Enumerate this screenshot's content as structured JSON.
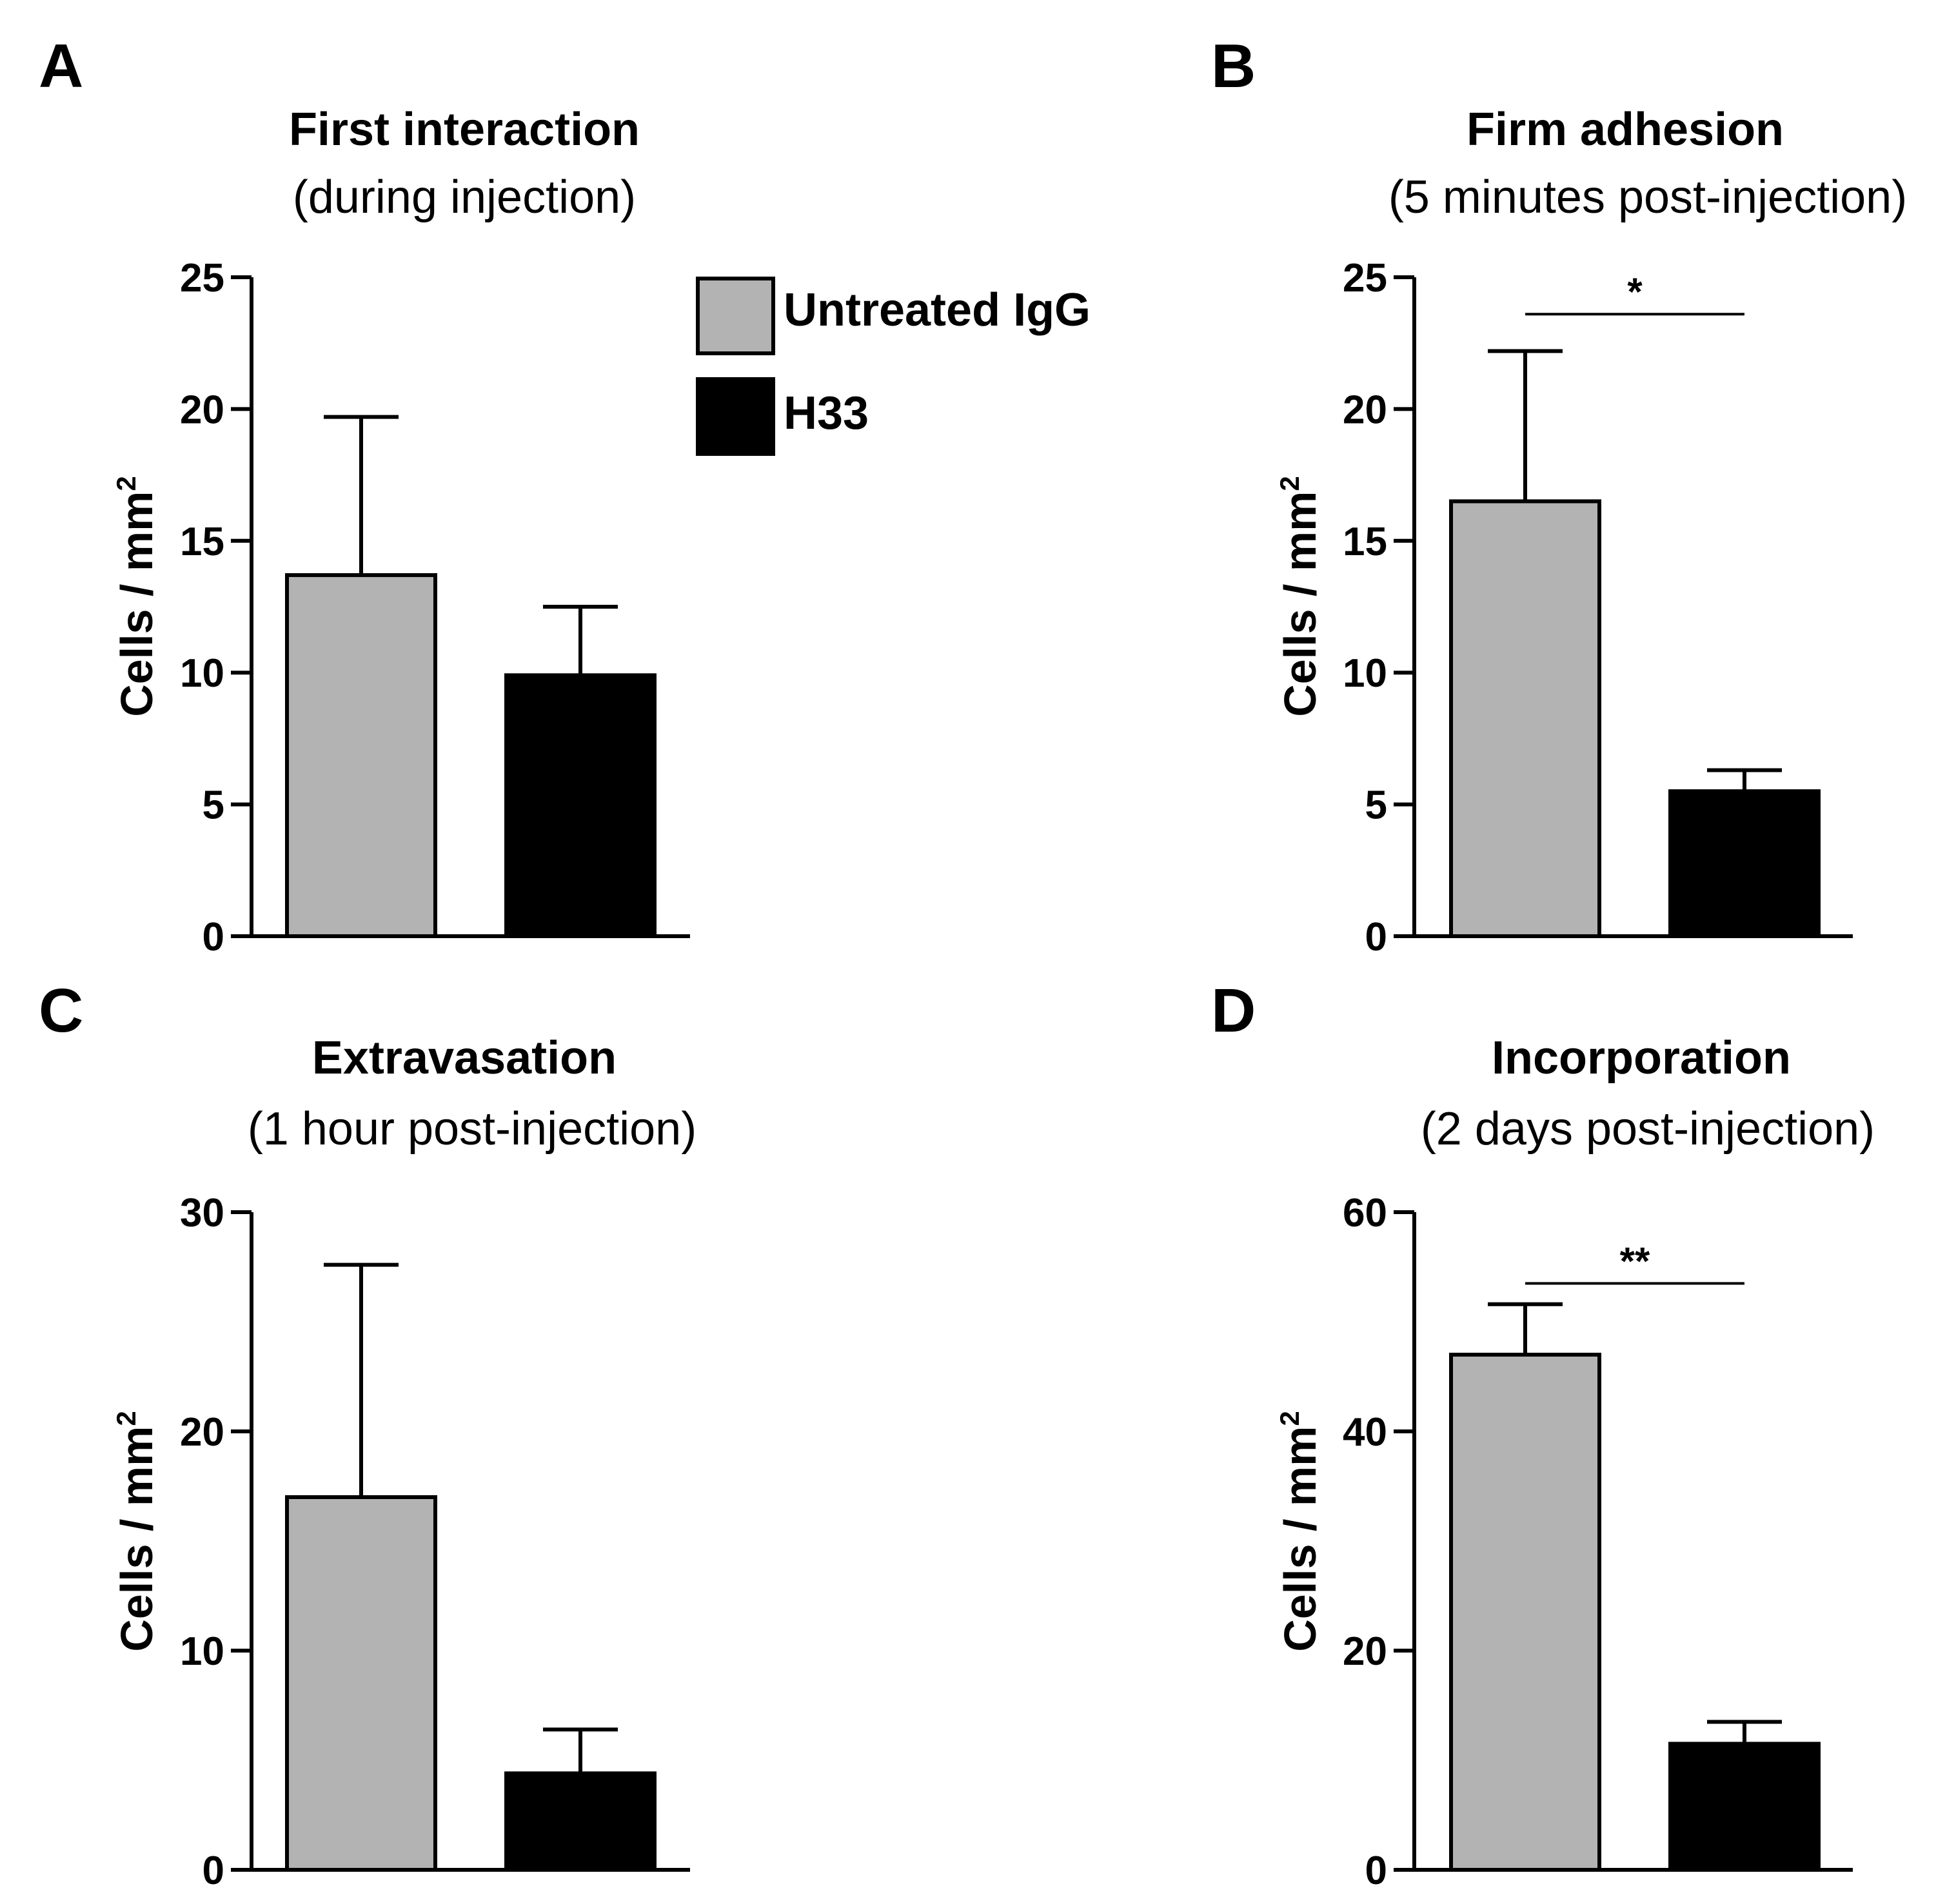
{
  "legend": {
    "entries": [
      {
        "label": "Untreated IgG",
        "color": "#b3b3b3"
      },
      {
        "label": "H33",
        "color": "#000000"
      }
    ]
  },
  "chart_data": [
    {
      "panel": "A",
      "type": "bar",
      "title": "First interaction",
      "subtitle": "(during injection)",
      "ylabel": "Cells / mm",
      "ylabel_sup": "2",
      "ylim": [
        0,
        25
      ],
      "yticks": [
        0,
        5,
        10,
        15,
        20,
        25
      ],
      "categories": [
        "Untreated IgG",
        "H33"
      ],
      "values": [
        13.7,
        9.9
      ],
      "errors": [
        6.0,
        2.6
      ],
      "colors": [
        "#b3b3b3",
        "#000000"
      ],
      "significance": null
    },
    {
      "panel": "B",
      "type": "bar",
      "title": "Firm adhesion",
      "subtitle": "(5 minutes post-injection)",
      "ylabel": "Cells / mm",
      "ylabel_sup": "2",
      "ylim": [
        0,
        25
      ],
      "yticks": [
        0,
        5,
        10,
        15,
        20,
        25
      ],
      "categories": [
        "Untreated IgG",
        "H33"
      ],
      "values": [
        16.5,
        5.5
      ],
      "errors": [
        5.7,
        0.8
      ],
      "colors": [
        "#b3b3b3",
        "#000000"
      ],
      "significance": {
        "label": "*",
        "y": 23.6
      }
    },
    {
      "panel": "C",
      "type": "bar",
      "title": "Extravasation",
      "subtitle": "(1 hour post-injection)",
      "ylabel": "Cells / mm",
      "ylabel_sup": "2",
      "ylim": [
        0,
        30
      ],
      "yticks": [
        0,
        10,
        20,
        30
      ],
      "categories": [
        "Untreated IgG",
        "H33"
      ],
      "values": [
        17.0,
        4.4
      ],
      "errors": [
        10.6,
        2.0
      ],
      "colors": [
        "#b3b3b3",
        "#000000"
      ],
      "significance": null
    },
    {
      "panel": "D",
      "type": "bar",
      "title": "Incorporation",
      "subtitle": "(2 days post-injection)",
      "ylabel": "Cells / mm",
      "ylabel_sup": "2",
      "ylim": [
        0,
        60
      ],
      "yticks": [
        0,
        20,
        40,
        60
      ],
      "categories": [
        "Untreated IgG",
        "H33"
      ],
      "values": [
        47.0,
        11.5
      ],
      "errors": [
        4.6,
        2.0
      ],
      "colors": [
        "#b3b3b3",
        "#000000"
      ],
      "significance": {
        "label": "**",
        "y": 53.5
      }
    }
  ]
}
